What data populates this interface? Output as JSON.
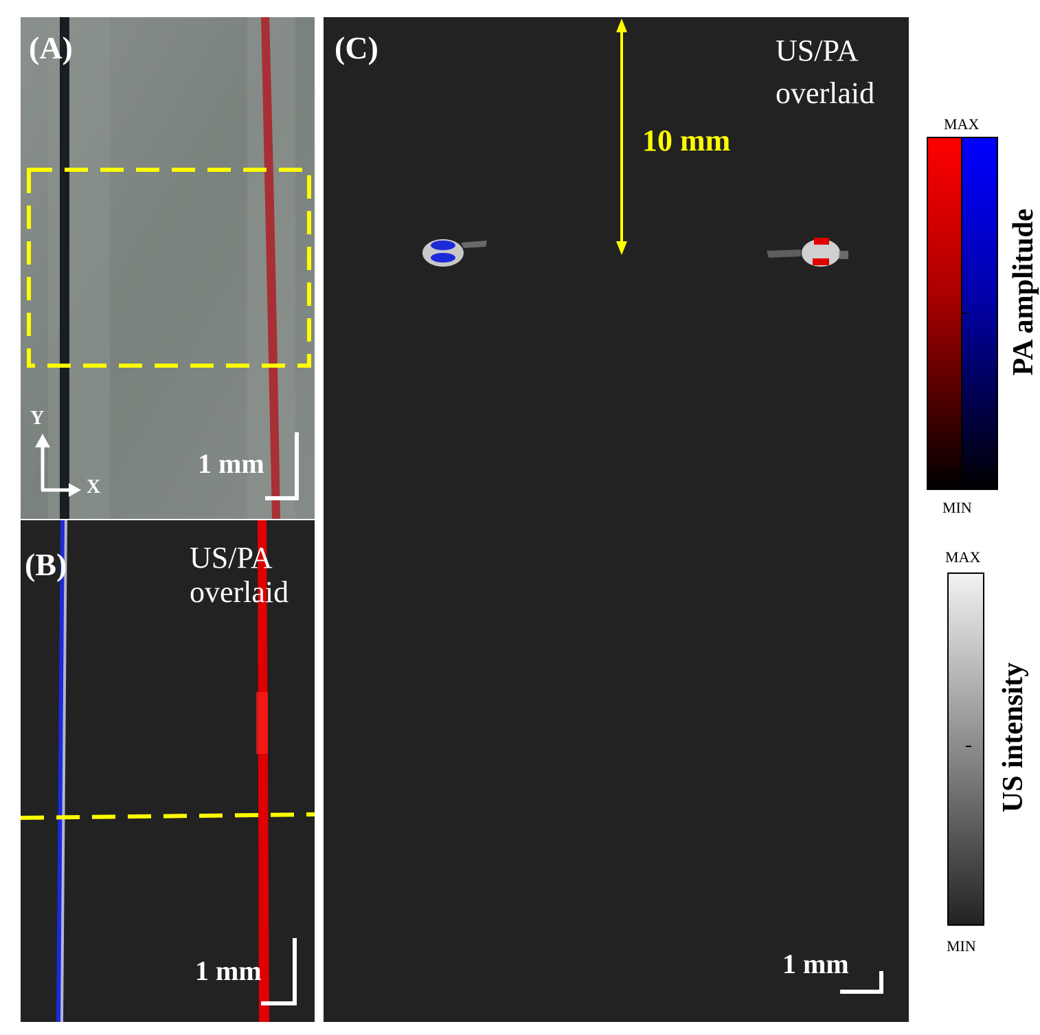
{
  "figure": {
    "panel_a": {
      "label": "(A)",
      "axis_y": "Y",
      "axis_x": "X",
      "scale_bar": "1 mm"
    },
    "panel_b": {
      "label": "(B)",
      "overlay_line1": "US/PA",
      "overlay_line2": "overlaid",
      "scale_bar": "1 mm"
    },
    "panel_c": {
      "label": "(C)",
      "overlay_line1": "US/PA",
      "overlay_line2": "overlaid",
      "depth_marker": "10 mm",
      "scale_bar": "1 mm"
    },
    "colorbar_pa": {
      "max": "MAX",
      "min": "MIN",
      "title": "PA amplitude"
    },
    "colorbar_us": {
      "max": "MAX",
      "min": "MIN",
      "title": "US intensity"
    },
    "colors": {
      "accent_yellow": "#ffff00",
      "pa_red": "#ff0000",
      "pa_blue": "#0000ff",
      "panel_bg": "#222222"
    }
  }
}
